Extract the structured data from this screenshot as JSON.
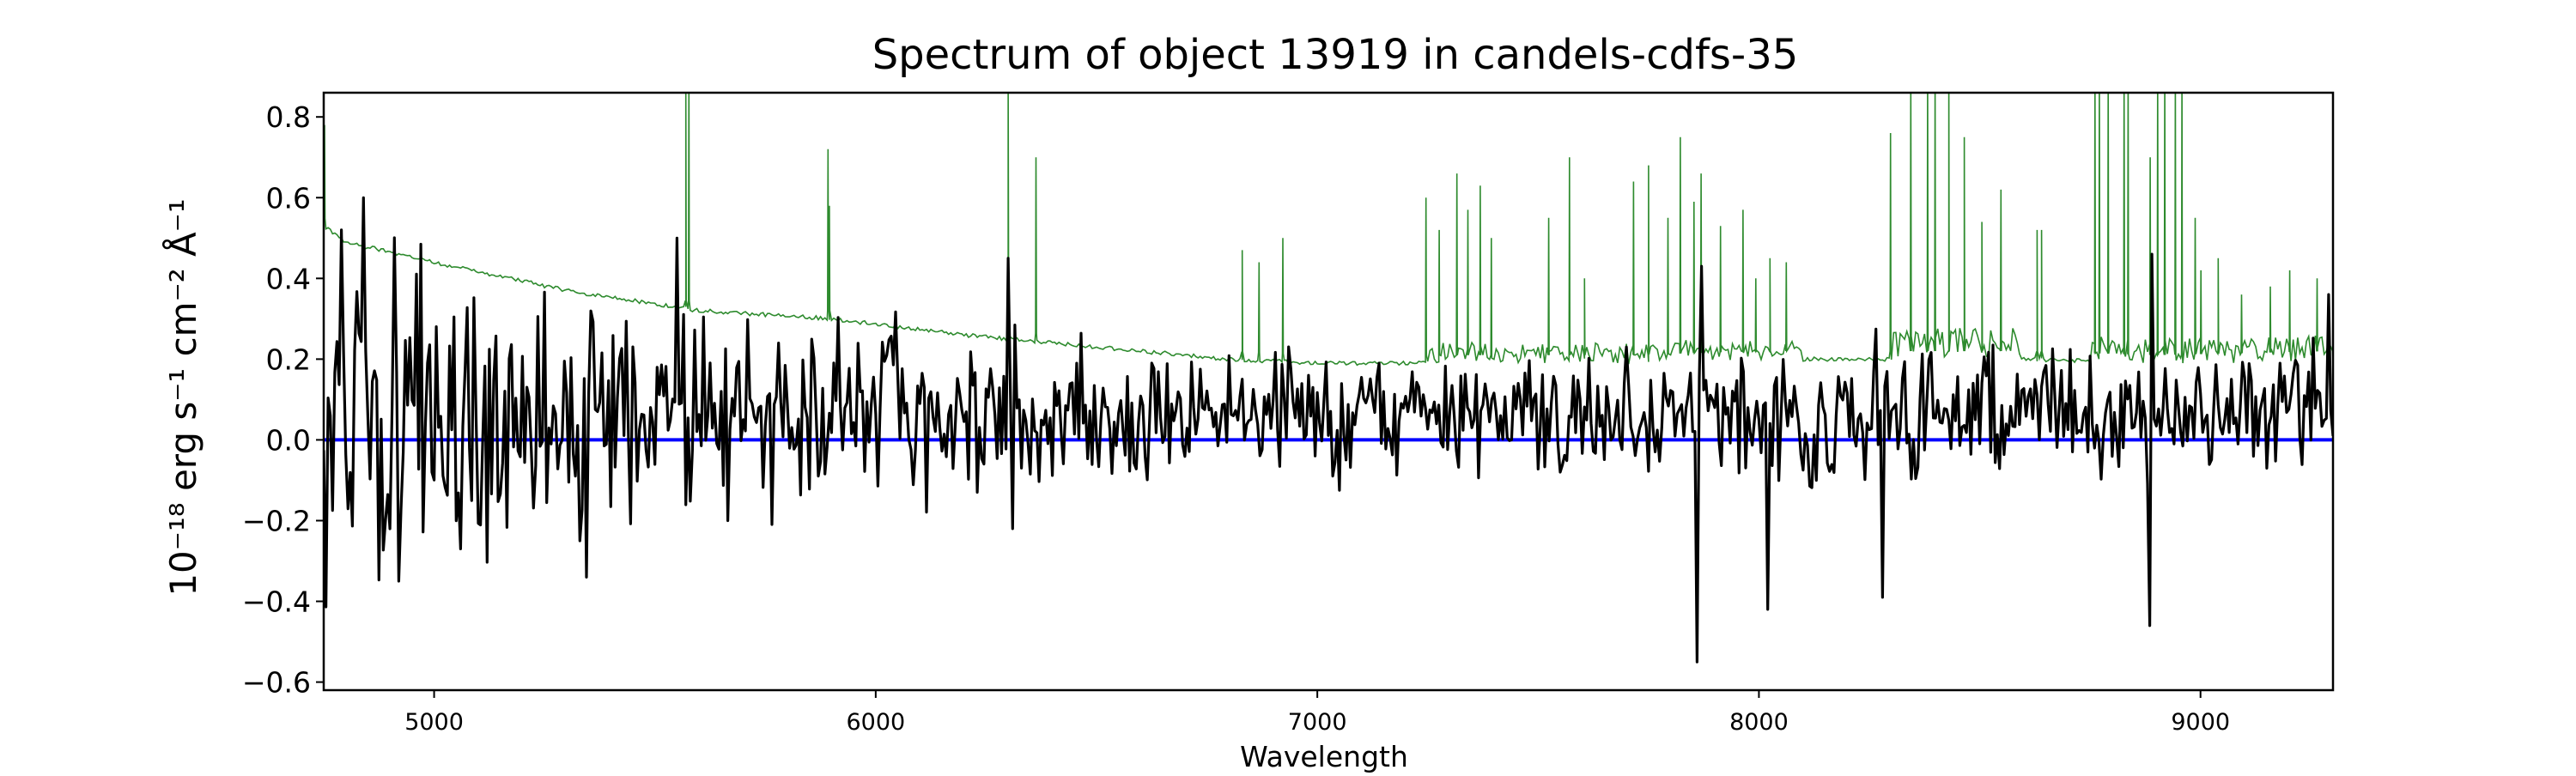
{
  "chart_data": {
    "type": "line",
    "title": "Spectrum of object 13919 in candels-cdfs-35",
    "xlabel": "Wavelength",
    "ylabel": "10⁻¹⁸ erg s⁻¹ cm⁻² Å⁻¹",
    "xlim": [
      4750,
      9300
    ],
    "ylim": [
      -0.62,
      0.86
    ],
    "xticks": [
      5000,
      6000,
      7000,
      8000,
      9000
    ],
    "xtick_labels": [
      "5000",
      "6000",
      "7000",
      "8000",
      "9000"
    ],
    "yticks": [
      -0.6,
      -0.4,
      -0.2,
      0.0,
      0.2,
      0.4,
      0.6,
      0.8
    ],
    "ytick_labels": [
      "−0.6",
      "−0.4",
      "−0.2",
      "0.0",
      "0.2",
      "0.4",
      "0.6",
      "0.8"
    ],
    "grid": false,
    "legend": "none",
    "colors": {
      "flux": "#000000",
      "error": "#2e8b2e",
      "zero_line": "#0000ff"
    },
    "zero_line_value": 0.0,
    "series": [
      {
        "key": "error",
        "color": "#2e8b2e",
        "continuum_knots": {
          "x": [
            4750,
            4800,
            5000,
            5300,
            5600,
            5900,
            6200,
            6500,
            6800,
            7000,
            7200,
            7400,
            7700,
            8000,
            8300,
            8600,
            8900,
            9300
          ],
          "y": [
            0.53,
            0.49,
            0.44,
            0.37,
            0.32,
            0.3,
            0.26,
            0.23,
            0.2,
            0.19,
            0.19,
            0.19,
            0.19,
            0.2,
            0.2,
            0.2,
            0.19,
            0.2
          ]
        },
        "spikes": {
          "x": [
            4752,
            5570,
            5577,
            5892,
            5895,
            6300,
            6363,
            6830,
            6868,
            6922,
            7246,
            7276,
            7316,
            7341,
            7369,
            7394,
            7524,
            7571,
            7605,
            7716,
            7750,
            7794,
            7822,
            7853,
            7869,
            7913,
            7964,
            7993,
            8025,
            8062,
            8298,
            8344,
            8382,
            8399,
            8430,
            8465,
            8505,
            8548,
            8630,
            8640,
            8761,
            8771,
            8791,
            8827,
            8836,
            8886,
            8903,
            8919,
            8943,
            8958,
            8988,
            9001,
            9040,
            9093,
            9158,
            9202,
            9264,
            9300
          ],
          "y": [
            0.78,
            0.9,
            0.9,
            0.72,
            0.58,
            0.9,
            0.7,
            0.47,
            0.44,
            0.5,
            0.6,
            0.52,
            0.66,
            0.57,
            0.63,
            0.5,
            0.55,
            0.7,
            0.4,
            0.64,
            0.68,
            0.55,
            0.75,
            0.59,
            0.66,
            0.53,
            0.57,
            0.4,
            0.45,
            0.44,
            0.76,
            0.9,
            0.9,
            0.9,
            0.9,
            0.75,
            0.54,
            0.62,
            0.52,
            0.52,
            0.9,
            0.9,
            0.9,
            0.9,
            0.9,
            0.7,
            0.9,
            0.9,
            0.9,
            0.9,
            0.55,
            0.42,
            0.45,
            0.36,
            0.38,
            0.42,
            0.4,
            0.36
          ]
        }
      },
      {
        "key": "flux",
        "color": "#000000",
        "x_start": 4750,
        "x_step": 5,
        "noise_seed": 13919,
        "extremes": {
          "x": [
            4790,
            4840,
            4920,
            5060,
            5345,
            5330,
            5550,
            6300,
            6310,
            7860,
            7870,
            8020,
            8280,
            8885,
            8890,
            9290
          ],
          "y": [
            0.52,
            0.6,
            -0.35,
            -0.27,
            -0.34,
            -0.25,
            0.5,
            0.45,
            -0.22,
            -0.55,
            0.43,
            -0.42,
            -0.39,
            -0.46,
            0.46,
            0.36
          ]
        }
      }
    ]
  }
}
